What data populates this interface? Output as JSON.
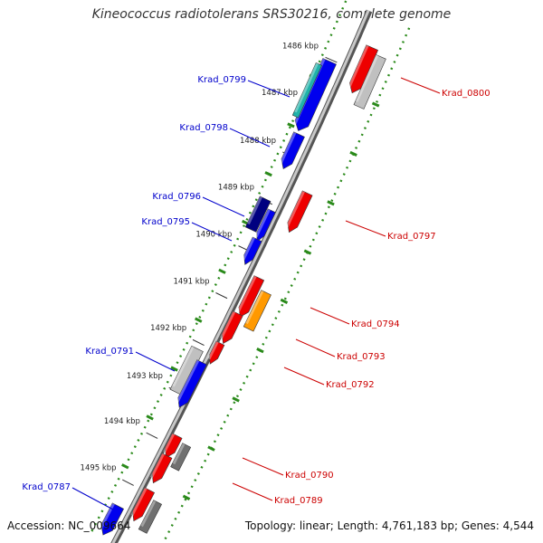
{
  "title": "Kineococcus radiotolerans SRS30216, complete genome",
  "accession": "Accession: NC_009664",
  "summary": "Topology: linear; Length: 4,761,183 bp; Genes: 4,544",
  "colors": {
    "dots": "#2a8a1a",
    "forward_label": "#0000cc",
    "reverse_label": "#cc0000",
    "blue": "#0000ee",
    "red": "#ee0000",
    "orange": "#ff9900",
    "silver": "#c0c0c0",
    "grey": "#707070",
    "navy": "#000080",
    "teal": "#20b2aa"
  },
  "kbp_ticks": [
    "1486 kbp",
    "1487 kbp",
    "1488 kbp",
    "1489 kbp",
    "1490 kbp",
    "1491 kbp",
    "1492 kbp",
    "1493 kbp",
    "1494 kbp",
    "1495 kbp"
  ],
  "forward_labels": [
    "Krad_0799",
    "Krad_0798",
    "Krad_0796",
    "Krad_0795",
    "Krad_0791",
    "Krad_0787"
  ],
  "reverse_labels": [
    "Krad_0800",
    "Krad_0797",
    "Krad_0794",
    "Krad_0793",
    "Krad_0792",
    "Krad_0790",
    "Krad_0789"
  ]
}
